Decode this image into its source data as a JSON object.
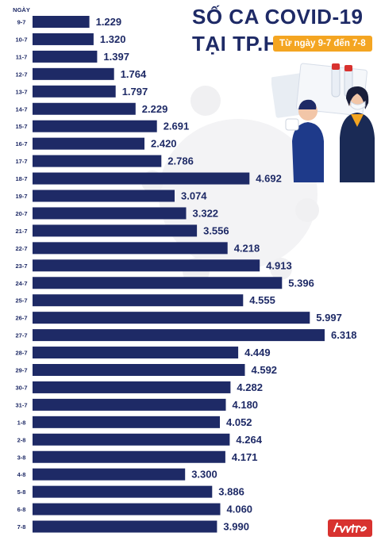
{
  "header": {
    "title_line1": "SỐ CA COVID-19",
    "title_line2": "TẠI TP.HCM",
    "subtitle": "Từ ngày 9-7 đến 7-8"
  },
  "chart_data": {
    "type": "bar",
    "orientation": "horizontal",
    "category_axis_label": "NGÀY",
    "categories": [
      "9-7",
      "10-7",
      "11-7",
      "12-7",
      "13-7",
      "14-7",
      "15-7",
      "16-7",
      "17-7",
      "18-7",
      "19-7",
      "20-7",
      "21-7",
      "22-7",
      "23-7",
      "24-7",
      "25-7",
      "26-7",
      "27-7",
      "28-7",
      "29-7",
      "30-7",
      "31-7",
      "1-8",
      "2-8",
      "3-8",
      "4-8",
      "5-8",
      "6-8",
      "7-8"
    ],
    "values": [
      1229,
      1320,
      1397,
      1764,
      1797,
      2229,
      2691,
      2420,
      2786,
      4692,
      3074,
      3322,
      3556,
      4218,
      4913,
      5396,
      4555,
      5997,
      6318,
      4449,
      4592,
      4282,
      4180,
      4052,
      4264,
      4171,
      3300,
      3886,
      4060,
      3990
    ],
    "value_labels": [
      "1.229",
      "1.320",
      "1.397",
      "1.764",
      "1.797",
      "2.229",
      "2.691",
      "2.420",
      "2.786",
      "4.692",
      "3.074",
      "3.322",
      "3.556",
      "4.218",
      "4.913",
      "5.396",
      "4.555",
      "5.997",
      "6.318",
      "4.449",
      "4.592",
      "4.282",
      "4.180",
      "4.052",
      "4.264",
      "4.171",
      "3.300",
      "3.886",
      "4.060",
      "3.990"
    ],
    "bar_color": "#1e2a66",
    "label_color": "#1e2a66",
    "grid": false,
    "legend": false
  },
  "logo": {
    "text": "tuổi trẻ",
    "color": "#d8322f"
  }
}
